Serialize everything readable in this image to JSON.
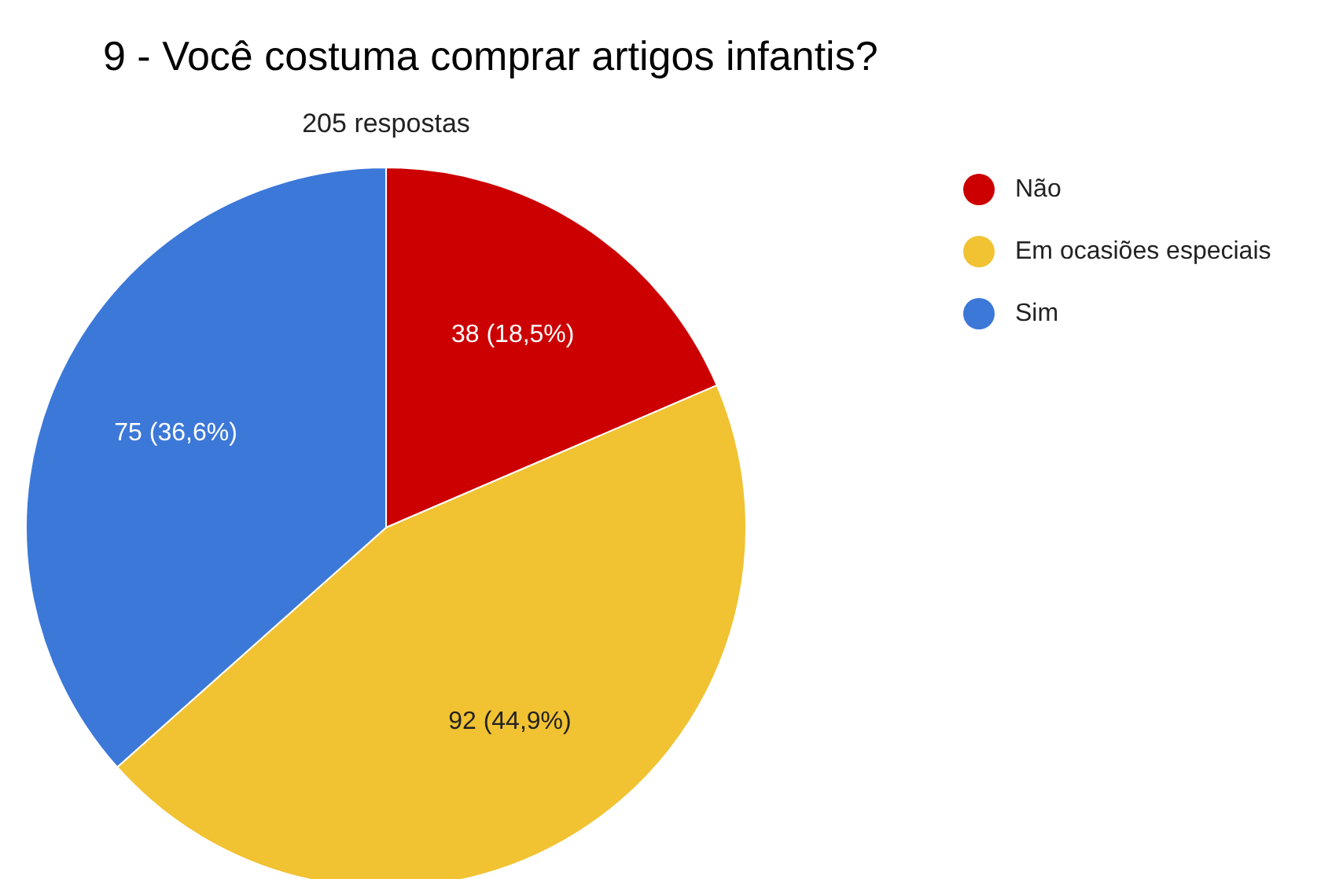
{
  "chart_data": {
    "type": "pie",
    "title": "9 - Você costuma comprar artigos infantis?",
    "subtitle": "205 respostas",
    "categories": [
      "Não",
      "Em ocasiões especiais",
      "Sim"
    ],
    "values": [
      38,
      92,
      75
    ],
    "colors": [
      "#cc0000",
      "#f1c232",
      "#3c78d8"
    ],
    "value_labels": [
      "38 (18,5%)",
      "92 (44,9%)",
      "75 (36,6%)"
    ],
    "legend": "right"
  }
}
